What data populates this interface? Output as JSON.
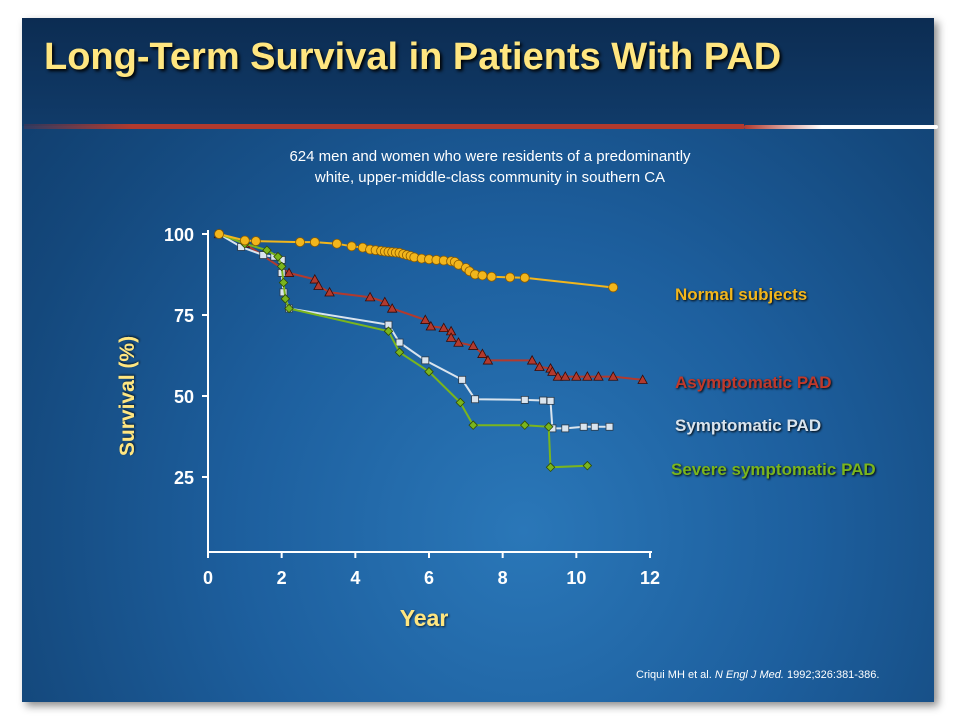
{
  "slide": {
    "title": "Long-Term Survival in Patients With PAD",
    "subtitle_line1": "624 men and women who were residents of a predominantly",
    "subtitle_line2": "white, upper-middle-class community in southern CA",
    "citation_authors": "Criqui MH et al. ",
    "citation_journal": "N Engl J Med.",
    "citation_rest": " 1992;326:381-386."
  },
  "colors": {
    "title": "#ffe680",
    "normal": "#f2b61c",
    "asymptomatic": "#b23a2e",
    "symptomatic": "#d9e4ee",
    "severe": "#7ab51d",
    "axis": "#ffffff"
  },
  "chart_data": {
    "type": "line",
    "title": "",
    "xlabel": "Year",
    "ylabel": "Survival (%)",
    "xlim": [
      0,
      12
    ],
    "ylim": [
      0,
      100
    ],
    "xticks": [
      "0",
      "2",
      "4",
      "6",
      "8",
      "10",
      "12"
    ],
    "yticks": [
      "25",
      "50",
      "75",
      "100"
    ],
    "legend_placement": "right",
    "series": [
      {
        "name": "Normal subjects",
        "marker": "circle",
        "x": [
          0.3,
          1.0,
          1.3,
          2.5,
          2.9,
          3.5,
          3.9,
          4.2,
          4.4,
          4.55,
          4.7,
          4.8,
          4.9,
          5.0,
          5.1,
          5.2,
          5.3,
          5.4,
          5.5,
          5.6,
          5.8,
          6.0,
          6.2,
          6.4,
          6.6,
          6.7,
          6.8,
          7.0,
          7.1,
          7.25,
          7.45,
          7.7,
          8.2,
          8.6,
          11.0
        ],
        "y": [
          100,
          98,
          97.8,
          97.5,
          97.5,
          97,
          96.2,
          95.8,
          95.2,
          95,
          94.8,
          94.6,
          94.5,
          94.4,
          94.3,
          94.2,
          93.8,
          93.5,
          93.2,
          92.8,
          92.4,
          92.2,
          92.0,
          91.8,
          91.6,
          91.4,
          90.5,
          89.5,
          88.5,
          87.5,
          87.2,
          86.8,
          86.6,
          86.5,
          83.5
        ]
      },
      {
        "name": "Asymptomatic PAD",
        "marker": "triangle",
        "x": [
          0.3,
          1.0,
          2.2,
          2.9,
          3.0,
          3.3,
          4.4,
          4.8,
          5.0,
          5.9,
          6.05,
          6.4,
          6.6,
          6.6,
          6.8,
          7.2,
          7.45,
          7.6,
          8.8,
          9.0,
          9.3,
          9.35,
          9.5,
          9.7,
          10.0,
          10.3,
          10.6,
          11.0,
          11.8
        ],
        "y": [
          100,
          97,
          88,
          86,
          84,
          82,
          80.5,
          79,
          77,
          73.5,
          71.5,
          71,
          70,
          68,
          66.5,
          65.5,
          63,
          61,
          61,
          59,
          58.5,
          57.5,
          56,
          56,
          56,
          56,
          56,
          56,
          55
        ]
      },
      {
        "name": "Symptomatic PAD",
        "marker": "square",
        "x": [
          0.3,
          0.9,
          1.5,
          1.8,
          2.0,
          2.0,
          2.05,
          2.2,
          4.9,
          5.2,
          5.9,
          6.9,
          7.25,
          8.6,
          9.1,
          9.3,
          9.35,
          9.7,
          10.2,
          10.5,
          10.9
        ],
        "y": [
          100,
          96,
          93.5,
          93,
          92,
          88,
          82,
          77,
          72,
          66.5,
          61,
          55,
          49,
          48.8,
          48.6,
          48.5,
          40,
          40,
          40.5,
          40.5,
          40.5
        ]
      },
      {
        "name": "Severe symptomatic PAD",
        "marker": "diamond",
        "x": [
          0.3,
          1.0,
          1.6,
          1.9,
          2.0,
          2.05,
          2.1,
          2.2,
          4.9,
          5.2,
          6.0,
          6.85,
          7.2,
          8.6,
          9.25,
          9.3,
          10.3
        ],
        "y": [
          100,
          97,
          95,
          93,
          90,
          85,
          80,
          77,
          70,
          63.5,
          57.5,
          48,
          41,
          41,
          40.5,
          28,
          28.5
        ]
      }
    ]
  }
}
